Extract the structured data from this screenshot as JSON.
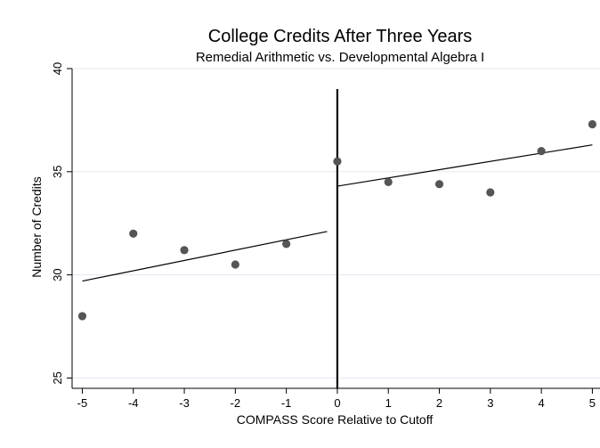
{
  "chart_data": {
    "type": "scatter",
    "title": "College Credits After Three Years",
    "subtitle": "Remedial Arithmetic vs. Developmental Algebra I",
    "xlabel": "COMPASS Score Relative to Cutoff",
    "ylabel": "Number of Credits",
    "xlim": [
      -5,
      5
    ],
    "ylim": [
      24.5,
      40
    ],
    "xticks": [
      -5,
      -4,
      -3,
      -2,
      -1,
      0,
      1,
      2,
      3,
      4,
      5
    ],
    "yticks": [
      25,
      30,
      35,
      40
    ],
    "grid": true,
    "points": [
      {
        "x": -5,
        "y": 28.0
      },
      {
        "x": -4,
        "y": 32.0
      },
      {
        "x": -3,
        "y": 31.2
      },
      {
        "x": -2,
        "y": 30.5
      },
      {
        "x": -1,
        "y": 31.5
      },
      {
        "x": 0,
        "y": 35.5
      },
      {
        "x": 1,
        "y": 34.5
      },
      {
        "x": 2,
        "y": 34.4
      },
      {
        "x": 3,
        "y": 34.0
      },
      {
        "x": 4,
        "y": 36.0
      },
      {
        "x": 5,
        "y": 37.3
      }
    ],
    "fit_lines": [
      {
        "x1": -5,
        "y1": 29.7,
        "x2": -0.2,
        "y2": 32.1
      },
      {
        "x1": 0,
        "y1": 34.3,
        "x2": 5,
        "y2": 36.3
      }
    ],
    "cutoff_x": 0,
    "colors": {
      "point": "#555555",
      "line": "#000000",
      "grid": "#e2eaf2",
      "frame": "#000000"
    }
  }
}
